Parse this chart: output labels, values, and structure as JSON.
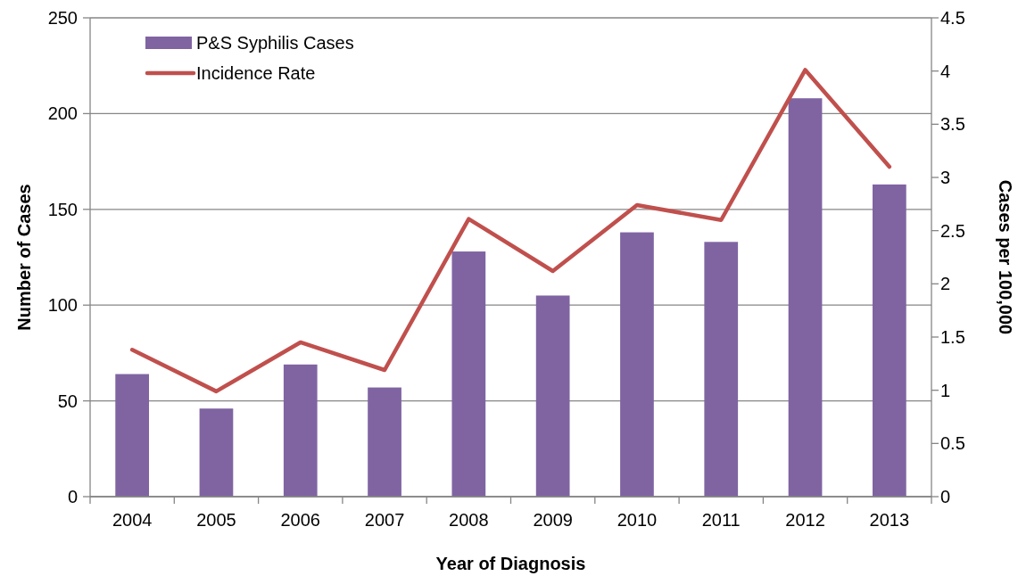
{
  "chart_data": {
    "type": "bar",
    "categories": [
      "2004",
      "2005",
      "2006",
      "2007",
      "2008",
      "2009",
      "2010",
      "2011",
      "2012",
      "2013"
    ],
    "xlabel": "Year of Diagnosis",
    "ylabel": "Number of Cases",
    "y2label": "Cases per 100,000",
    "ylim": [
      0,
      250
    ],
    "yticks": [
      0,
      50,
      100,
      150,
      200,
      250
    ],
    "y2lim": [
      0,
      4.5
    ],
    "y2ticks": [
      0,
      0.5,
      1,
      1.5,
      2,
      2.5,
      3,
      3.5,
      4,
      4.5
    ],
    "grid": "y",
    "legend": "top left",
    "series": [
      {
        "name": "P&S Syphilis Cases",
        "color": "#8064a2",
        "values": [
          64,
          46,
          69,
          57,
          128,
          105,
          138,
          133,
          208,
          163
        ]
      },
      {
        "name": "Incidence Rate",
        "type": "line",
        "axis": "y2",
        "color": "#c0504d",
        "values": [
          1.38,
          0.99,
          1.45,
          1.19,
          2.61,
          2.12,
          2.74,
          2.6,
          4.01,
          3.1
        ]
      }
    ]
  }
}
